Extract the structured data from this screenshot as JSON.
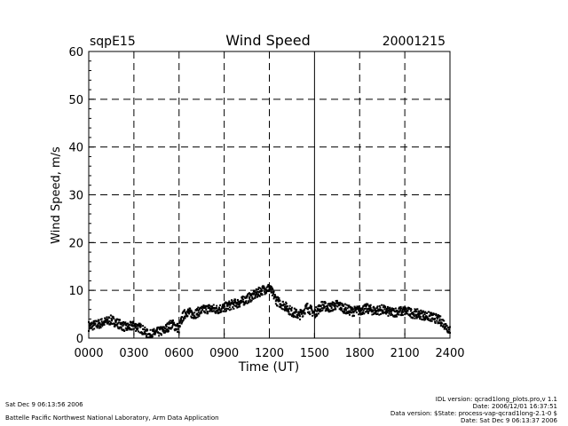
{
  "header": {
    "site": "sqpE15",
    "title": "Wind Speed",
    "date": "20001215"
  },
  "chart_data": {
    "type": "scatter",
    "title": "Wind Speed",
    "xlabel": "Time (UT)",
    "ylabel": "Wind Speed, m/s",
    "xlim": [
      0,
      2400
    ],
    "ylim": [
      0,
      60
    ],
    "x_ticks": [
      "0000",
      "0300",
      "0600",
      "0900",
      "1200",
      "1500",
      "1800",
      "2100",
      "2400"
    ],
    "y_ticks": [
      "0",
      "10",
      "20",
      "30",
      "40",
      "50",
      "60"
    ],
    "grid": true,
    "color": "#000000",
    "series": [
      {
        "x_hours": [
          0,
          0.5,
          1,
          1.5,
          2,
          2.5,
          3,
          3.5,
          3.75,
          4,
          4.5,
          5,
          5.5,
          6,
          6.25,
          6.5,
          7,
          7.5,
          8,
          8.5,
          9,
          9.5,
          10,
          10.5,
          11,
          11.5,
          12,
          12.25,
          12.5,
          13,
          13.5,
          14,
          14.5,
          15,
          15.5,
          16,
          16.5,
          17,
          17.5,
          18,
          18.5,
          19,
          19.5,
          20,
          20.5,
          21,
          21.5,
          22,
          22.5,
          23,
          23.5,
          23.75,
          24
        ],
        "values": [
          2.5,
          2.8,
          3.3,
          3.8,
          3.0,
          2.2,
          2.6,
          2.0,
          1.2,
          0.6,
          1.2,
          1.6,
          3.0,
          2.0,
          4.5,
          5.5,
          5.0,
          5.8,
          6.2,
          6.0,
          6.4,
          7.0,
          7.4,
          8.2,
          9.0,
          10.0,
          10.5,
          9.2,
          7.8,
          6.8,
          5.5,
          4.8,
          6.5,
          5.2,
          6.8,
          6.4,
          7.0,
          6.2,
          5.6,
          5.8,
          6.2,
          5.7,
          6.0,
          5.4,
          5.5,
          5.7,
          5.2,
          5.0,
          4.6,
          4.2,
          3.4,
          2.4,
          1.8
        ]
      }
    ]
  },
  "footer": {
    "left_line1": "Sat Dec  9 06:13:56 2006",
    "left_line2": "Battelle Pacific Northwest National Laboratory, Arm Data Application",
    "right_line1": "IDL version: qcrad1long_plots.pro,v 1.1",
    "right_line2": "Date: 2006/12/01 16:37:51",
    "right_line3": "Data version: $State: process-vap-qcrad1long-2.1-0 $",
    "right_line4": "Date: Sat Dec  9 06:13:37 2006"
  }
}
